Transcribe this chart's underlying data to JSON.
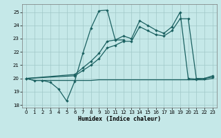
{
  "xlabel": "Humidex (Indice chaleur)",
  "xlim": [
    -0.5,
    23.5
  ],
  "ylim": [
    17.8,
    25.6
  ],
  "yticks": [
    18,
    19,
    20,
    21,
    22,
    23,
    24,
    25
  ],
  "xticks": [
    0,
    1,
    2,
    3,
    4,
    5,
    6,
    7,
    8,
    9,
    10,
    11,
    12,
    13,
    14,
    15,
    16,
    17,
    18,
    19,
    20,
    21,
    22,
    23
  ],
  "bg_color": "#c5e8e8",
  "line_color": "#1a6060",
  "grid_color": "#a0c8c8",
  "line_flat_x": [
    0,
    1,
    2,
    3,
    4,
    5,
    6,
    7,
    8,
    9,
    10,
    11,
    12,
    13,
    14,
    15,
    16,
    17,
    18,
    19,
    20,
    21,
    22,
    23
  ],
  "line_flat_y": [
    20.0,
    19.85,
    19.85,
    19.85,
    19.85,
    19.85,
    19.85,
    19.85,
    19.85,
    19.9,
    19.9,
    19.9,
    19.9,
    19.9,
    19.9,
    19.9,
    19.9,
    19.9,
    19.9,
    19.9,
    19.9,
    19.9,
    19.9,
    20.0
  ],
  "line_zigzag_x": [
    0,
    1,
    2,
    3,
    4,
    5,
    6,
    7,
    8,
    9,
    10,
    11,
    12,
    13,
    14,
    15,
    16,
    17,
    18,
    19,
    20,
    21,
    22,
    23
  ],
  "line_zigzag_y": [
    20.0,
    19.85,
    19.85,
    19.7,
    19.2,
    18.3,
    19.8,
    21.9,
    23.8,
    25.1,
    25.15,
    22.9,
    22.9,
    null,
    null,
    null,
    null,
    null,
    null,
    null,
    null,
    null,
    null,
    null
  ],
  "line_rise1_x": [
    0,
    6,
    7,
    8,
    9,
    10,
    11,
    12,
    13,
    14,
    15,
    16,
    17,
    18,
    19,
    20,
    21,
    22,
    23
  ],
  "line_rise1_y": [
    20.0,
    20.3,
    20.8,
    21.3,
    21.9,
    22.8,
    22.9,
    23.2,
    23.0,
    24.35,
    24.0,
    23.65,
    23.4,
    23.9,
    25.0,
    20.0,
    19.95,
    20.0,
    20.1
  ],
  "line_rise2_x": [
    0,
    6,
    7,
    8,
    9,
    10,
    11,
    12,
    13,
    14,
    15,
    16,
    17,
    18,
    19,
    20,
    21,
    22,
    23
  ],
  "line_rise2_y": [
    20.0,
    20.2,
    20.6,
    21.0,
    21.5,
    22.3,
    22.5,
    22.8,
    22.8,
    23.9,
    23.6,
    23.3,
    23.2,
    23.6,
    24.5,
    24.5,
    20.0,
    20.0,
    20.2
  ]
}
